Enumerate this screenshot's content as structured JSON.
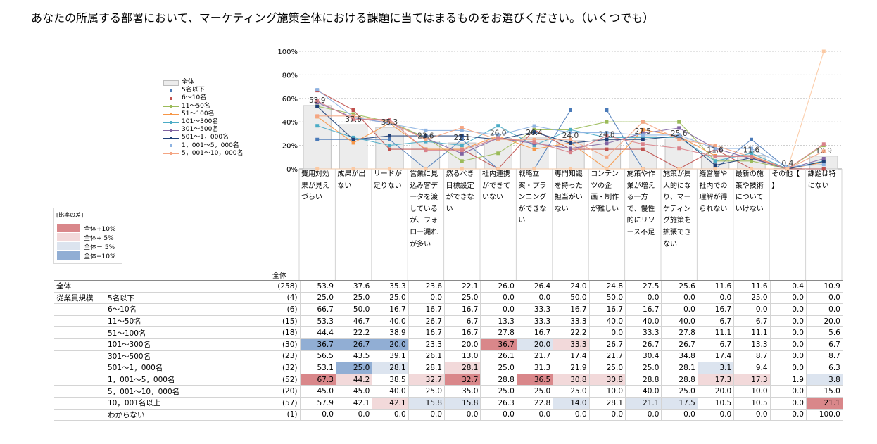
{
  "title": "あなたの所属する部署において、マーケティング施策全体における課題に当てはまるものをお選びください。（いくつでも）",
  "n_header": "全体",
  "chart_data": {
    "type": "line",
    "ylim": [
      0,
      100
    ],
    "yticks": [
      "0%",
      "20%",
      "40%",
      "60%",
      "80%",
      "100%"
    ],
    "categories": [
      "費用対効果が見えづらい",
      "成果が出ない",
      "リードが足りない",
      "営業に見込み客データを渡しているが、フォロー漏れが多い",
      "然るべき目標設定ができない",
      "社内連携ができていない",
      "戦略立案・プランニングができない",
      "専門知識を持った担当がいない",
      "コンテンツの企画・制作が難しい",
      "施策や作業が増える一方で、慢性的にリソース不足",
      "施策が属人的になり、マーケティング施策を拡張できない",
      "経営層や社内での理解が得られない",
      "最新の施策や技術についていけない",
      "その他【　】",
      "課題は特にない"
    ],
    "total": {
      "name": "全体",
      "values": [
        53.9,
        37.6,
        35.3,
        23.6,
        22.1,
        26.0,
        26.4,
        24.0,
        24.8,
        27.5,
        25.6,
        11.6,
        11.6,
        0.4,
        10.9
      ]
    },
    "total_labels": [
      "53.9",
      "37.6",
      "35.3",
      "23.6",
      "22.1",
      "26.0",
      "26.4",
      "24.0",
      "24.8",
      "27.5",
      "25.6",
      "11.6",
      "11.6",
      "0.4",
      "10.9"
    ],
    "series": [
      {
        "name": "5名以下",
        "color": "#4a7ab8",
        "values": [
          25.0,
          25.0,
          25.0,
          0.0,
          25.0,
          0.0,
          0.0,
          50.0,
          50.0,
          0.0,
          0.0,
          0.0,
          25.0,
          0.0,
          0.0
        ]
      },
      {
        "name": "6～10名",
        "color": "#c0504d",
        "values": [
          66.7,
          50.0,
          16.7,
          16.7,
          16.7,
          0.0,
          33.3,
          16.7,
          16.7,
          16.7,
          0.0,
          16.7,
          0.0,
          0.0,
          0.0
        ]
      },
      {
        "name": "11～50名",
        "color": "#9bbb59",
        "values": [
          53.3,
          46.7,
          40.0,
          26.7,
          6.7,
          13.3,
          33.3,
          33.3,
          40.0,
          40.0,
          40.0,
          6.7,
          6.7,
          0.0,
          20.0
        ]
      },
      {
        "name": "51～100名",
        "color": "#f79646",
        "values": [
          44.4,
          22.2,
          38.9,
          16.7,
          16.7,
          27.8,
          16.7,
          22.2,
          0.0,
          33.3,
          27.8,
          11.1,
          11.1,
          0.0,
          5.6
        ]
      },
      {
        "name": "101～300名",
        "color": "#4bacc6",
        "values": [
          36.7,
          26.7,
          20.0,
          23.3,
          20.0,
          36.7,
          20.0,
          33.3,
          26.7,
          26.7,
          26.7,
          6.7,
          13.3,
          0.0,
          6.7
        ]
      },
      {
        "name": "301～500名",
        "color": "#8064a2",
        "values": [
          56.5,
          43.5,
          39.1,
          26.1,
          13.0,
          26.1,
          21.7,
          17.4,
          21.7,
          30.4,
          34.8,
          17.4,
          8.7,
          0.0,
          8.7
        ]
      },
      {
        "name": "501～1，000名",
        "color": "#1f3f77",
        "values": [
          53.1,
          25.0,
          28.1,
          28.1,
          28.1,
          25.0,
          31.3,
          21.9,
          25.0,
          25.0,
          28.1,
          3.1,
          9.4,
          0.0,
          6.3
        ]
      },
      {
        "name": "1，001～5，000名",
        "color": "#8db3e2",
        "values": [
          67.3,
          44.2,
          38.5,
          32.7,
          32.7,
          28.8,
          36.5,
          30.8,
          30.8,
          28.8,
          28.8,
          17.3,
          17.3,
          1.9,
          3.8
        ]
      },
      {
        "name": "5，001～10，000名",
        "color": "#f4a582",
        "values": [
          45.0,
          45.0,
          40.0,
          25.0,
          35.0,
          25.0,
          25.0,
          25.0,
          10.0,
          40.0,
          25.0,
          20.0,
          10.0,
          0.0,
          15.0
        ]
      },
      {
        "name": "10，001名以上",
        "color": "#d9828a",
        "values": [
          57.9,
          42.1,
          42.1,
          15.8,
          15.8,
          26.3,
          22.8,
          14.0,
          28.1,
          21.1,
          17.5,
          10.5,
          10.5,
          0.0,
          21.1
        ]
      },
      {
        "name": "わからない",
        "color": "#fbc9a3",
        "values": [
          0.0,
          0.0,
          0.0,
          0.0,
          0.0,
          0.0,
          0.0,
          0.0,
          0.0,
          0.0,
          0.0,
          0.0,
          0.0,
          0.0,
          100.0
        ]
      }
    ]
  },
  "legend": {
    "items": [
      "全体",
      "5名以下",
      "6～10名",
      "11～50名",
      "51～100名",
      "101～300名",
      "301～500名",
      "501～1，000名",
      "1，001～5，000名",
      "5，001～10，000名"
    ]
  },
  "diff_legend": {
    "title": "[比率の差]",
    "items": [
      {
        "label": "全体+10%",
        "color": "#d9878a"
      },
      {
        "label": "全体+ 5%",
        "color": "#f2d9da"
      },
      {
        "label": "全体－ 5%",
        "color": "#dce4ef"
      },
      {
        "label": "全体−10%",
        "color": "#91aed4"
      }
    ]
  },
  "column_headers": [
    "費用対効果が見えづらい",
    "成果が出ない",
    "リードが足りない",
    "営業に見込み客データを渡しているが、フォロー漏れが多い",
    "然るべき目標設定ができない",
    "社内連携ができていない",
    "戦略立案・プランニングができない",
    "専門知識を持った担当がいない",
    "コンテンツの企画・制作が難しい",
    "施策や作業が増える一方で、慢性的にリソース不足",
    "施策が属人的になり、マーケティング施策を拡張できない",
    "経営層や社内での理解が得られない",
    "最新の施策や技術についていけない",
    "その他【 】",
    "課題は特にない"
  ],
  "table": {
    "group_label": "従業員規模",
    "rows": [
      {
        "label": "全体",
        "n": "(258)",
        "values": [
          "53.9",
          "37.6",
          "35.3",
          "23.6",
          "22.1",
          "26.0",
          "26.4",
          "24.0",
          "24.8",
          "27.5",
          "25.6",
          "11.6",
          "11.6",
          "0.4",
          "10.9"
        ],
        "shade": [
          0,
          0,
          0,
          0,
          0,
          0,
          0,
          0,
          0,
          0,
          0,
          0,
          0,
          0,
          0
        ]
      },
      {
        "label": "5名以下",
        "n": "(4)",
        "values": [
          "25.0",
          "25.0",
          "25.0",
          "0.0",
          "25.0",
          "0.0",
          "0.0",
          "50.0",
          "50.0",
          "0.0",
          "0.0",
          "0.0",
          "25.0",
          "0.0",
          "0.0"
        ],
        "shade": [
          0,
          0,
          0,
          0,
          0,
          0,
          0,
          0,
          0,
          0,
          0,
          0,
          0,
          0,
          0
        ]
      },
      {
        "label": "6～10名",
        "n": "(6)",
        "values": [
          "66.7",
          "50.0",
          "16.7",
          "16.7",
          "16.7",
          "0.0",
          "33.3",
          "16.7",
          "16.7",
          "16.7",
          "0.0",
          "16.7",
          "0.0",
          "0.0",
          "0.0"
        ],
        "shade": [
          0,
          0,
          0,
          0,
          0,
          0,
          0,
          0,
          0,
          0,
          0,
          0,
          0,
          0,
          0
        ]
      },
      {
        "label": "11～50名",
        "n": "(15)",
        "values": [
          "53.3",
          "46.7",
          "40.0",
          "26.7",
          "6.7",
          "13.3",
          "33.3",
          "33.3",
          "40.0",
          "40.0",
          "40.0",
          "6.7",
          "6.7",
          "0.0",
          "20.0"
        ],
        "shade": [
          0,
          0,
          0,
          0,
          0,
          0,
          0,
          0,
          0,
          0,
          0,
          0,
          0,
          0,
          0
        ]
      },
      {
        "label": "51～100名",
        "n": "(18)",
        "values": [
          "44.4",
          "22.2",
          "38.9",
          "16.7",
          "16.7",
          "27.8",
          "16.7",
          "22.2",
          "0.0",
          "33.3",
          "27.8",
          "11.1",
          "11.1",
          "0.0",
          "5.6"
        ],
        "shade": [
          0,
          0,
          0,
          0,
          0,
          0,
          0,
          0,
          0,
          0,
          0,
          0,
          0,
          0,
          0
        ]
      },
      {
        "label": "101～300名",
        "n": "(30)",
        "values": [
          "36.7",
          "26.7",
          "20.0",
          "23.3",
          "20.0",
          "36.7",
          "20.0",
          "33.3",
          "26.7",
          "26.7",
          "26.7",
          "6.7",
          "13.3",
          "0.0",
          "6.7"
        ],
        "shade": [
          -2,
          -2,
          -2,
          0,
          0,
          2,
          -1,
          1,
          0,
          0,
          0,
          0,
          0,
          0,
          0
        ]
      },
      {
        "label": "301～500名",
        "n": "(23)",
        "values": [
          "56.5",
          "43.5",
          "39.1",
          "26.1",
          "13.0",
          "26.1",
          "21.7",
          "17.4",
          "21.7",
          "30.4",
          "34.8",
          "17.4",
          "8.7",
          "0.0",
          "8.7"
        ],
        "shade": [
          0,
          0,
          0,
          0,
          0,
          0,
          0,
          0,
          0,
          0,
          0,
          0,
          0,
          0,
          0
        ]
      },
      {
        "label": "501～1，000名",
        "n": "(32)",
        "values": [
          "53.1",
          "25.0",
          "28.1",
          "28.1",
          "28.1",
          "25.0",
          "31.3",
          "21.9",
          "25.0",
          "25.0",
          "28.1",
          "3.1",
          "9.4",
          "0.0",
          "6.3"
        ],
        "shade": [
          0,
          -2,
          -1,
          0,
          1,
          0,
          0,
          0,
          0,
          0,
          0,
          -1,
          0,
          0,
          0
        ]
      },
      {
        "label": "1，001～5，000名",
        "n": "(52)",
        "values": [
          "67.3",
          "44.2",
          "38.5",
          "32.7",
          "32.7",
          "28.8",
          "36.5",
          "30.8",
          "30.8",
          "28.8",
          "28.8",
          "17.3",
          "17.3",
          "1.9",
          "3.8"
        ],
        "shade": [
          2,
          1,
          0,
          1,
          2,
          0,
          2,
          1,
          1,
          0,
          0,
          1,
          1,
          0,
          -1
        ]
      },
      {
        "label": "5，001～10，000名",
        "n": "(20)",
        "values": [
          "45.0",
          "45.0",
          "40.0",
          "25.0",
          "35.0",
          "25.0",
          "25.0",
          "25.0",
          "10.0",
          "40.0",
          "25.0",
          "20.0",
          "10.0",
          "0.0",
          "15.0"
        ],
        "shade": [
          0,
          0,
          0,
          0,
          0,
          0,
          0,
          0,
          0,
          0,
          0,
          0,
          0,
          0,
          0
        ]
      },
      {
        "label": "10，001名以上",
        "n": "(57)",
        "values": [
          "57.9",
          "42.1",
          "42.1",
          "15.8",
          "15.8",
          "26.3",
          "22.8",
          "14.0",
          "28.1",
          "21.1",
          "17.5",
          "10.5",
          "10.5",
          "0.0",
          "21.1"
        ],
        "shade": [
          0,
          0,
          1,
          -1,
          -1,
          0,
          0,
          -1,
          0,
          -1,
          -1,
          0,
          0,
          0,
          2
        ]
      },
      {
        "label": "わからない",
        "n": "(1)",
        "values": [
          "0.0",
          "0.0",
          "0.0",
          "0.0",
          "0.0",
          "0.0",
          "0.0",
          "0.0",
          "0.0",
          "0.0",
          "0.0",
          "0.0",
          "0.0",
          "0.0",
          "100.0"
        ],
        "shade": [
          0,
          0,
          0,
          0,
          0,
          0,
          0,
          0,
          0,
          0,
          0,
          0,
          0,
          0,
          0
        ]
      }
    ]
  }
}
